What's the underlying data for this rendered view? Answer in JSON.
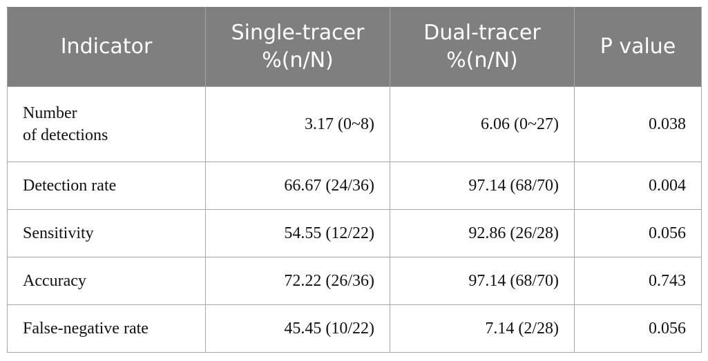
{
  "table": {
    "headers": {
      "indicator": "Indicator",
      "single_line1": "Single-tracer",
      "single_line2": "%(n/N)",
      "dual_line1": "Dual-tracer",
      "dual_line2": "%(n/N)",
      "p_value": "P value"
    },
    "rows": [
      {
        "indicator_line1": "Number",
        "indicator_line2": "of detections",
        "single": "3.17 (0~8)",
        "dual": "6.06 (0~27)",
        "p": "0.038"
      },
      {
        "indicator": "Detection rate",
        "single": "66.67 (24/36)",
        "dual": "97.14 (68/70)",
        "p": "0.004"
      },
      {
        "indicator": "Sensitivity",
        "single": "54.55 (12/22)",
        "dual": "92.86 (26/28)",
        "p": "0.056"
      },
      {
        "indicator": "Accuracy",
        "single": "72.22 (26/36)",
        "dual": "97.14 (68/70)",
        "p": "0.743"
      },
      {
        "indicator": "False-negative rate",
        "single": "45.45 (10/22)",
        "dual": "7.14 (2/28)",
        "p": "0.056"
      }
    ]
  }
}
